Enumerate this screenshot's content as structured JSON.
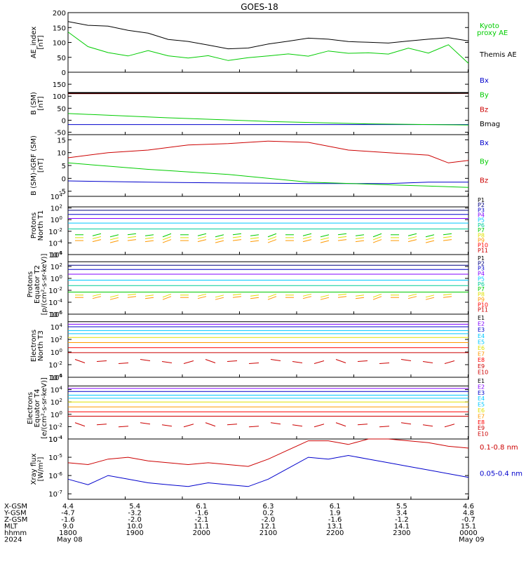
{
  "title": "GOES-18",
  "colors": {
    "black": "#000000",
    "green": "#00cc00",
    "red": "#cc0000",
    "blue": "#0000cc",
    "darkred": "#7f0000",
    "navy": "#000080",
    "purple": "#8000ff",
    "cyan": "#00c8ff",
    "teal": "#00cc99",
    "yellow": "#e0e000",
    "orange": "#ff9900",
    "brightred": "#ff0000"
  },
  "chart_data": [
    {
      "type": "line",
      "ylabel": [
        "AE_index",
        "[nT]"
      ],
      "ylim": [
        0,
        200
      ],
      "yticks": [
        "200",
        "150",
        "100",
        "50",
        "0"
      ],
      "legend": [
        "Kyoto",
        "proxy AE",
        "Themis AE"
      ],
      "series": [
        {
          "name": "Themis AE",
          "x": [
            0,
            0.05,
            0.1,
            0.15,
            0.2,
            0.25,
            0.3,
            0.35,
            0.4,
            0.45,
            0.5,
            0.55,
            0.6,
            0.65,
            0.7,
            0.75,
            0.8,
            0.85,
            0.9,
            0.95,
            1
          ],
          "values": [
            170,
            155,
            150,
            135,
            125,
            105,
            100,
            90,
            80,
            85,
            100,
            110,
            120,
            115,
            105,
            100,
            95,
            100,
            105,
            110,
            100
          ]
        },
        {
          "name": "Kyoto proxy AE",
          "x": [
            0,
            0.05,
            0.1,
            0.15,
            0.2,
            0.25,
            0.3,
            0.35,
            0.4,
            0.45,
            0.5,
            0.55,
            0.6,
            0.65,
            0.7,
            0.75,
            0.8,
            0.85,
            0.9,
            0.95,
            1
          ],
          "values": [
            130,
            80,
            60,
            50,
            70,
            55,
            50,
            60,
            45,
            55,
            60,
            65,
            55,
            70,
            60,
            60,
            55,
            75,
            60,
            90,
            30
          ]
        }
      ]
    },
    {
      "type": "line",
      "ylabel": [
        "B (SM)",
        "[nT]"
      ],
      "ylim": [
        -60,
        200
      ],
      "yticks": [
        "150",
        "100",
        "50",
        "0",
        "-50"
      ],
      "legend": [
        "Bx",
        "By",
        "Bz",
        "Bmag"
      ],
      "series": [
        {
          "name": "Bx",
          "x": [
            0,
            1
          ],
          "values": [
            -18,
            -18
          ]
        },
        {
          "name": "By",
          "x": [
            0,
            0.25,
            0.5,
            0.75,
            1
          ],
          "values": [
            28,
            10,
            -5,
            -15,
            -20
          ]
        },
        {
          "name": "Bz",
          "x": [
            0,
            1
          ],
          "values": [
            112,
            113
          ]
        },
        {
          "name": "Bmag",
          "x": [
            0,
            1
          ],
          "values": [
            114,
            114
          ]
        }
      ]
    },
    {
      "type": "line",
      "ylabel": [
        "B (SM)-IGRF (SM)",
        "[nT]"
      ],
      "ylim": [
        -7,
        17
      ],
      "yticks": [
        "15",
        "10",
        "5",
        "0",
        "-5"
      ],
      "legend": [
        "Bx",
        "By",
        "Bz"
      ],
      "series": [
        {
          "name": "Bx",
          "x": [
            0,
            0.2,
            0.4,
            0.6,
            0.8,
            0.9,
            1
          ],
          "values": [
            -1,
            -1.5,
            -1.8,
            -2,
            -2,
            -1.5,
            -1.5
          ]
        },
        {
          "name": "By",
          "x": [
            0,
            0.2,
            0.4,
            0.6,
            0.8,
            1
          ],
          "values": [
            6,
            3.5,
            1.5,
            -1.5,
            -2.5,
            -3.5
          ]
        },
        {
          "name": "Bz",
          "x": [
            0,
            0.1,
            0.2,
            0.3,
            0.4,
            0.5,
            0.6,
            0.7,
            0.8,
            0.9,
            0.95,
            1
          ],
          "values": [
            8,
            10,
            11,
            13,
            13.5,
            14.5,
            14,
            11,
            10,
            9,
            6,
            7
          ]
        }
      ]
    },
    {
      "type": "line",
      "ylabel": [
        "Protons",
        "North T1"
      ],
      "ylim": [
        -6,
        4
      ],
      "ylog": true,
      "yticks": [
        "10^4",
        "10^2",
        "10^0",
        "10^-2",
        "10^-4",
        "10^-6"
      ],
      "legend": [
        "P1",
        "P2",
        "P3",
        "P4",
        "P5",
        "P6",
        "P7",
        "P8",
        "P9",
        "P10",
        "P11"
      ],
      "levels": [
        2.2,
        1.6,
        0.9,
        0.2,
        -0.6,
        -1.6,
        -2.6,
        -3.1,
        -3.6
      ]
    },
    {
      "type": "line",
      "ylabel": [
        "Protons",
        "Equator T2",
        "[p/(cm²-s-sr-keV)]"
      ],
      "ylim": [
        -6,
        4
      ],
      "ylog": true,
      "yticks": [
        "10^4",
        "10^2",
        "10^0",
        "10^-2",
        "10^-4",
        "10^-6"
      ],
      "legend": [
        "P1",
        "P2",
        "P3",
        "P4",
        "P5",
        "P6",
        "P7",
        "P8",
        "P9",
        "P10",
        "P11"
      ],
      "levels": [
        2.8,
        2.2,
        1.5,
        0.7,
        -0.3,
        -1.2,
        -2.3,
        -2.8,
        -3.2
      ]
    },
    {
      "type": "line",
      "ylabel": [
        "Electrons",
        "North T3"
      ],
      "ylim": [
        -4,
        6
      ],
      "ylog": true,
      "yticks": [
        "10^6",
        "10^4",
        "10^2",
        "10^0",
        "10^-2",
        "10^-4"
      ],
      "legend": [
        "E1",
        "E2",
        "E3",
        "E4",
        "E5",
        "E6",
        "E7",
        "E8",
        "E9",
        "E10"
      ],
      "levels": [
        4.8,
        4.4,
        4,
        3.4,
        2.9,
        2.3,
        1.5,
        0.7,
        -0.1,
        -1.5
      ]
    },
    {
      "type": "line",
      "ylabel": [
        "Electrons",
        "Equator T4",
        "[e/(cm²-s-sr-keV)]"
      ],
      "ylim": [
        -4,
        6
      ],
      "ylog": true,
      "yticks": [
        "10^6",
        "10^4",
        "10^2",
        "10^0",
        "10^-2",
        "10^-4"
      ],
      "legend": [
        "E1",
        "E2",
        "E3",
        "E4",
        "E5",
        "E6",
        "E7",
        "E8",
        "E9",
        "E10"
      ],
      "levels": [
        4.6,
        4.2,
        3.7,
        3.1,
        2.6,
        2,
        1.2,
        0.4,
        -0.3,
        -1.7
      ]
    },
    {
      "type": "line",
      "ylabel": [
        "Xray flux",
        "[W/m²]"
      ],
      "ylim": [
        -7.3,
        -4
      ],
      "ylog": true,
      "yticks": [
        "10^-4",
        "10^-5",
        "10^-6",
        "10^-7"
      ],
      "legend": [
        "0.1-0.8 nm",
        "0.05-0.4 nm"
      ],
      "series": [
        {
          "name": "0.1-0.8 nm",
          "x": [
            0,
            0.05,
            0.1,
            0.15,
            0.2,
            0.25,
            0.3,
            0.35,
            0.4,
            0.45,
            0.5,
            0.55,
            0.6,
            0.65,
            0.7,
            0.75,
            0.8,
            0.85,
            0.9,
            0.95,
            1
          ],
          "values": [
            -5.3,
            -5.4,
            -5.1,
            -5,
            -5.2,
            -5.3,
            -5.4,
            -5.3,
            -5.4,
            -5.5,
            -5.1,
            -4.6,
            -4.1,
            -4.1,
            -4.3,
            -4,
            -4,
            -4.1,
            -4.2,
            -4.4,
            -4.5
          ]
        },
        {
          "name": "0.05-0.4 nm",
          "x": [
            0,
            0.05,
            0.1,
            0.15,
            0.2,
            0.25,
            0.3,
            0.35,
            0.4,
            0.45,
            0.5,
            0.55,
            0.6,
            0.65,
            0.7,
            0.75,
            0.8,
            0.85,
            0.9,
            0.95,
            1
          ],
          "values": [
            -6.2,
            -6.5,
            -6,
            -6.2,
            -6.4,
            -6.5,
            -6.6,
            -6.4,
            -6.5,
            -6.6,
            -6.2,
            -5.6,
            -5,
            -5.1,
            -4.9,
            -5.1,
            -5.3,
            -5.5,
            -5.7,
            -5.9,
            -6.1
          ]
        }
      ]
    }
  ],
  "x_axis": {
    "row_labels": [
      "X-GSM",
      "Y-GSM",
      "Z-GSM",
      "MLT",
      "hhmm",
      "2024"
    ],
    "columns": [
      [
        "4.4",
        "-4.7",
        "-1.6",
        "9.0",
        "1800",
        "May 08"
      ],
      [
        "5.4",
        "-3.2",
        "-2.0",
        "10.0",
        "1900",
        ""
      ],
      [
        "6.1",
        "-1.6",
        "-2.1",
        "11.1",
        "2000",
        ""
      ],
      [
        "6.3",
        "0.2",
        "-2.0",
        "12.1",
        "2100",
        ""
      ],
      [
        "6.1",
        "1.9",
        "-1.6",
        "13.1",
        "2200",
        ""
      ],
      [
        "5.5",
        "3.4",
        "-1.2",
        "14.1",
        "2300",
        ""
      ],
      [
        "4.6",
        "4.8",
        "-0.7",
        "15.1",
        "0000",
        "May 09"
      ]
    ]
  }
}
